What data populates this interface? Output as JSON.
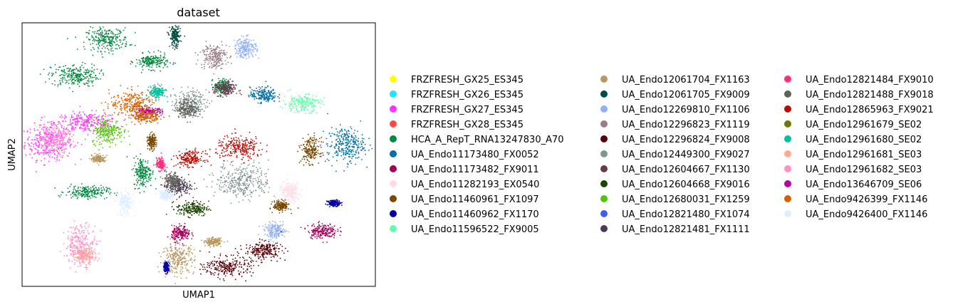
{
  "chart_data": {
    "type": "scatter",
    "title": "dataset",
    "xlabel": "UMAP1",
    "ylabel": "UMAP2",
    "xticks": [],
    "yticks": [],
    "grid": false,
    "legend_placement": "right, outside plot, 3 columns",
    "series": [
      {
        "name": "FRZFRESH_GX25_ES345",
        "color": "#ffff00",
        "clusters": []
      },
      {
        "name": "FRZFRESH_GX26_ES345",
        "color": "#1ce6ff",
        "clusters": []
      },
      {
        "name": "FRZFRESH_GX27_ES345",
        "color": "#ff34ff",
        "clusters": [
          [
            -4.7,
            1.6,
            0.9,
            0.7
          ],
          [
            -3.4,
            2.3,
            1.2,
            0.4
          ]
        ]
      },
      {
        "name": "FRZFRESH_GX28_ES345",
        "color": "#ff4a46",
        "clusters": []
      },
      {
        "name": "HCA_A_RepT_RNA13247830_A70",
        "color": "#008941",
        "clusters": [
          [
            -3.8,
            4.0,
            0.9,
            0.45
          ],
          [
            -2.7,
            5.3,
            0.8,
            0.45
          ],
          [
            -1.2,
            4.5,
            0.6,
            0.3
          ],
          [
            -3.4,
            -0.2,
            0.8,
            0.25
          ],
          [
            1.2,
            3.6,
            0.3,
            0.3
          ],
          [
            -1.5,
            0.5,
            0.35,
            0.6
          ]
        ]
      },
      {
        "name": "UA_Endo11173480_FX0052",
        "color": "#006fa6",
        "clusters": [
          [
            5.4,
            1.5,
            0.7,
            0.7
          ],
          [
            2.6,
            3.3,
            0.5,
            0.3
          ]
        ]
      },
      {
        "name": "UA_Endo11173482_FX9011",
        "color": "#a30059",
        "clusters": [
          [
            4.6,
            -1.6,
            0.55,
            0.3
          ],
          [
            -0.2,
            -1.7,
            0.35,
            0.3
          ]
        ]
      },
      {
        "name": "UA_Endo11282193_EX0540",
        "color": "#ffdbe5",
        "clusters": [
          [
            3.5,
            -0.2,
            0.4,
            0.4
          ]
        ]
      },
      {
        "name": "UA_Endo11460961_FX1097",
        "color": "#7a4900",
        "clusters": [
          [
            4.2,
            1.3,
            0.35,
            0.5
          ],
          [
            3.2,
            -0.7,
            0.3,
            0.2
          ],
          [
            -1.2,
            1.6,
            0.15,
            0.3
          ]
        ]
      },
      {
        "name": "UA_Endo11460962_FX1170",
        "color": "#0000a6",
        "clusters": [
          [
            5.0,
            -0.6,
            0.25,
            0.12
          ],
          [
            -0.7,
            -2.9,
            0.1,
            0.2
          ]
        ]
      },
      {
        "name": "UA_Endo11596522_FX9005",
        "color": "#63ffac",
        "clusters": [
          [
            3.9,
            3.0,
            0.7,
            0.35
          ]
        ]
      },
      {
        "name": "UA_Endo12061704_FX1163",
        "color": "#b79762",
        "clusters": [
          [
            -0.3,
            -2.6,
            0.6,
            0.6
          ],
          [
            -3.0,
            1.0,
            0.25,
            0.15
          ],
          [
            0.9,
            -2.0,
            0.3,
            0.15
          ]
        ]
      },
      {
        "name": "UA_Endo12061705_FX9009",
        "color": "#004d43",
        "clusters": [
          [
            -0.4,
            5.4,
            0.2,
            0.45
          ]
        ]
      },
      {
        "name": "UA_Endo12269810_FX1106",
        "color": "#8fb0ff",
        "clusters": [
          [
            2.0,
            5.0,
            0.4,
            0.4
          ],
          [
            3.0,
            -1.6,
            0.4,
            0.3
          ]
        ]
      },
      {
        "name": "UA_Endo12296823_FX1119",
        "color": "#997d87",
        "clusters": [
          [
            0.9,
            4.7,
            0.5,
            0.5
          ]
        ]
      },
      {
        "name": "UA_Endo12296824_FX9008",
        "color": "#5a0007",
        "clusters": [
          [
            1.4,
            -2.9,
            0.9,
            0.4
          ],
          [
            2.6,
            -2.3,
            0.7,
            0.35
          ]
        ]
      },
      {
        "name": "UA_Endo12449300_FX9027",
        "color": "#809693",
        "clusters": [
          [
            0.1,
            3.0,
            0.6,
            0.5
          ],
          [
            1.9,
            0.2,
            1.0,
            0.7
          ]
        ]
      },
      {
        "name": "UA_Endo12604667_FX1130",
        "color": "#6a3a4c",
        "clusters": [
          [
            1.3,
            3.5,
            0.4,
            0.3
          ]
        ]
      },
      {
        "name": "UA_Endo12604668_FX9016",
        "color": "#1b4400",
        "clusters": [
          [
            0.2,
            -0.8,
            0.6,
            0.3
          ]
        ]
      },
      {
        "name": "UA_Endo12680031_FX1259",
        "color": "#4fc601",
        "clusters": [
          [
            -2.7,
            2.0,
            0.6,
            0.5
          ]
        ]
      },
      {
        "name": "UA_Endo12821480_FX1074",
        "color": "#3b5dff",
        "clusters": []
      },
      {
        "name": "UA_Endo12821481_FX1111",
        "color": "#4a3b53",
        "clusters": [
          [
            -0.3,
            0.0,
            0.5,
            0.35
          ]
        ]
      },
      {
        "name": "UA_Endo12821484_FX9010",
        "color": "#ff2f80",
        "clusters": [
          [
            -0.9,
            0.8,
            0.15,
            0.25
          ]
        ]
      },
      {
        "name": "UA_Endo12821488_FX9018",
        "color": "#61615a",
        "clusters": [
          [
            0.0,
            2.8,
            0.4,
            0.35
          ],
          [
            -0.5,
            0.2,
            0.3,
            0.35
          ]
        ]
      },
      {
        "name": "UA_Endo12865963_FX9021",
        "color": "#ba0900",
        "clusters": [
          [
            1.8,
            1.4,
            0.9,
            0.45
          ],
          [
            0.1,
            1.0,
            0.5,
            0.3
          ]
        ]
      },
      {
        "name": "UA_Endo12961679_SE02",
        "color": "#6b7900",
        "clusters": []
      },
      {
        "name": "UA_Endo12961680_SE02",
        "color": "#00c2a0",
        "clusters": [
          [
            -1.0,
            3.4,
            0.3,
            0.25
          ]
        ]
      },
      {
        "name": "UA_Endo12961681_SE03",
        "color": "#ffaa92",
        "clusters": [
          [
            -3.5,
            -2.5,
            0.35,
            0.3
          ]
        ]
      },
      {
        "name": "UA_Endo12961682_SE03",
        "color": "#ff90c9",
        "clusters": [
          [
            -3.6,
            -2.1,
            0.6,
            0.8
          ],
          [
            -4.5,
            1.7,
            0.6,
            0.6
          ]
        ]
      },
      {
        "name": "UA_Endo13646709_SE06",
        "color": "#b903aa",
        "clusters": [
          [
            -1.3,
            2.7,
            0.5,
            0.15
          ]
        ]
      },
      {
        "name": "UA_Endo9426399_FX1146",
        "color": "#d16100",
        "clusters": [
          [
            -1.8,
            3.0,
            0.9,
            0.5
          ],
          [
            -1.4,
            2.5,
            0.5,
            0.2
          ]
        ]
      },
      {
        "name": "UA_Endo9426400_FX1146",
        "color": "#ddefff",
        "clusters": [
          [
            -2.1,
            -0.6,
            0.3,
            0.5
          ],
          [
            -0.7,
            -0.3,
            0.25,
            0.2
          ]
        ]
      }
    ]
  }
}
